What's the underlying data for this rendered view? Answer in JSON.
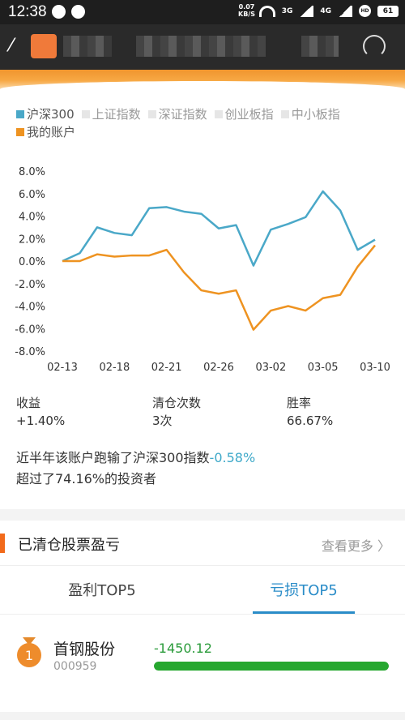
{
  "status_bar": {
    "time": "12:38",
    "net_speed_value": "0.07",
    "net_speed_unit": "KB/S",
    "sig1": "3G",
    "sig2": "4G",
    "battery": "61"
  },
  "legend": [
    {
      "label": "沪深300",
      "color": "#4aa8c8",
      "active": true
    },
    {
      "label": "上证指数",
      "color": "#e6e6e6",
      "active": false
    },
    {
      "label": "深证指数",
      "color": "#e6e6e6",
      "active": false
    },
    {
      "label": "创业板指",
      "color": "#e6e6e6",
      "active": false
    },
    {
      "label": "中小板指",
      "color": "#e6e6e6",
      "active": false
    },
    {
      "label": "我的账户",
      "color": "#ee9321",
      "active": true
    }
  ],
  "chart_data": {
    "type": "line",
    "y_ticks": [
      "8.0%",
      "6.0%",
      "4.0%",
      "2.0%",
      "0.0%",
      "-2.0%",
      "-4.0%",
      "-6.0%",
      "-8.0%"
    ],
    "ylim": [
      -8,
      8
    ],
    "x_tick_labels": [
      "02-13",
      "02-18",
      "02-21",
      "02-26",
      "03-02",
      "03-05",
      "03-10"
    ],
    "x_tick_index": [
      0,
      3,
      6,
      9,
      12,
      15,
      18
    ],
    "x_count": 19,
    "series": [
      {
        "name": "沪深300",
        "color": "#4aa8c8",
        "values": [
          0.0,
          0.7,
          3.0,
          2.5,
          2.3,
          4.7,
          4.8,
          4.4,
          4.2,
          2.9,
          3.2,
          -0.4,
          2.8,
          3.3,
          3.9,
          6.2,
          4.5,
          1.0,
          1.9
        ]
      },
      {
        "name": "我的账户",
        "color": "#ee9321",
        "values": [
          0.0,
          0.0,
          0.6,
          0.4,
          0.5,
          0.5,
          1.0,
          -1.0,
          -2.6,
          -2.9,
          -2.6,
          -6.1,
          -4.4,
          -4.0,
          -4.4,
          -3.3,
          -3.0,
          -0.5,
          1.4
        ]
      }
    ],
    "grid": false
  },
  "stats": [
    {
      "label": "收益",
      "value": "+1.40%"
    },
    {
      "label": "清仓次数",
      "value": "3次"
    },
    {
      "label": "胜率",
      "value": "66.67%"
    }
  ],
  "summary": {
    "line1_prefix": "近半年该账户跑输了沪深300指数",
    "line1_diff": "-0.58%",
    "line2": "超过了74.16%的投资者"
  },
  "section": {
    "title": "已清仓股票盈亏",
    "more": "查看更多 〉"
  },
  "tabs": [
    {
      "label": "盈利TOP5",
      "active": false
    },
    {
      "label": "亏损TOP5",
      "active": true
    }
  ],
  "loss_items": [
    {
      "rank": "1",
      "name": "首钢股份",
      "code": "000959",
      "pl": "-1450.12",
      "bar_fraction": 1.0
    }
  ]
}
